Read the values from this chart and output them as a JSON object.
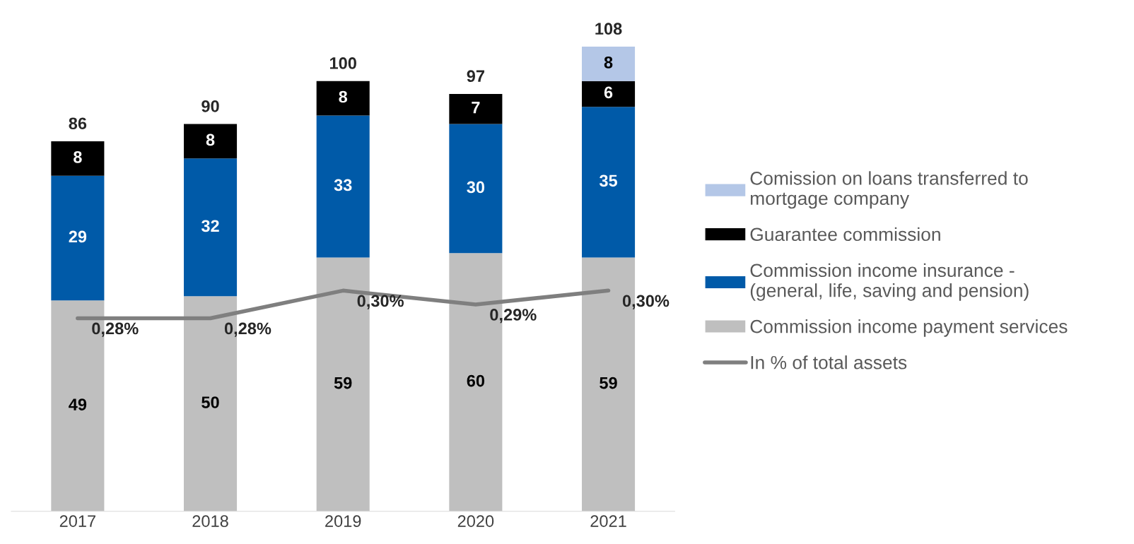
{
  "chart_data": {
    "type": "bar",
    "stacked": true,
    "categories": [
      "2017",
      "2018",
      "2019",
      "2020",
      "2021"
    ],
    "series": [
      {
        "name": "Commission income payment services",
        "color": "#bfbfbf",
        "values": [
          49,
          50,
          59,
          60,
          59
        ]
      },
      {
        "name": "Commission income insurance -\n(general, life, saving and pension)",
        "color": "#005aa8",
        "values": [
          29,
          32,
          33,
          30,
          35
        ]
      },
      {
        "name": "Guarantee commission",
        "color": "#000000",
        "values": [
          8,
          8,
          8,
          7,
          6
        ]
      },
      {
        "name": "Comission on loans transferred to\nmortgage company",
        "color": "#b4c7e7",
        "values": [
          null,
          null,
          null,
          null,
          8
        ]
      },
      {
        "name": "In % of total assets",
        "type": "line",
        "axis": "y2",
        "color": "#7f7f7f",
        "values": [
          0.28,
          0.28,
          0.3,
          0.29,
          0.3
        ],
        "value_labels": [
          "0,28%",
          "0,28%",
          "0,30%",
          "0,29%",
          "0,30%"
        ]
      }
    ],
    "totals": [
      "86",
      "90",
      "100",
      "97",
      "108"
    ],
    "data_labels": true,
    "tick_labels": "x",
    "grid": false,
    "legend": "right",
    "marker": "none",
    "line_style": "solid"
  }
}
